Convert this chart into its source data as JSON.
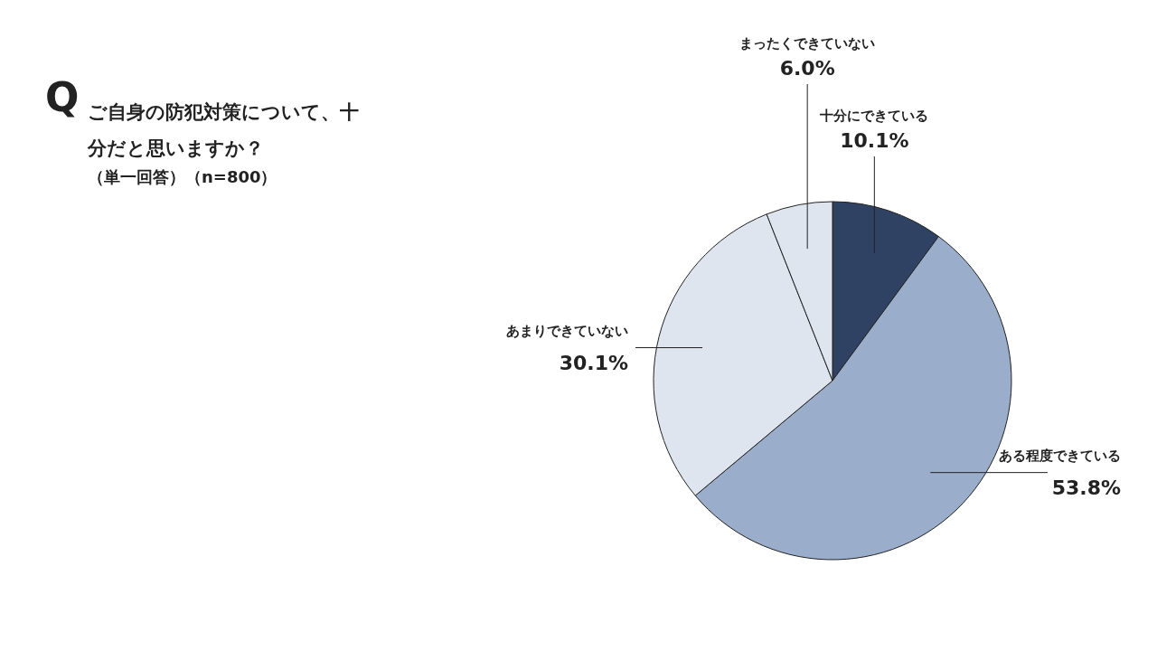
{
  "chart_data": {
    "type": "pie",
    "title": "ご自身の防犯対策について、十分だと思いますか？",
    "subtitle": "（単一回答）（n=800）",
    "annotations": [
      "Q"
    ],
    "categories": [
      "十分にできている",
      "ある程度できている",
      "あまりできていない",
      "まったくできていない"
    ],
    "values": [
      10.1,
      53.8,
      30.1,
      6.0
    ],
    "value_labels": [
      "10.1%",
      "53.8%",
      "30.1%",
      "6.0%"
    ],
    "colors": [
      "#2f4263",
      "#9aaecb",
      "#dfe5ee",
      "#dfe5ee"
    ]
  }
}
